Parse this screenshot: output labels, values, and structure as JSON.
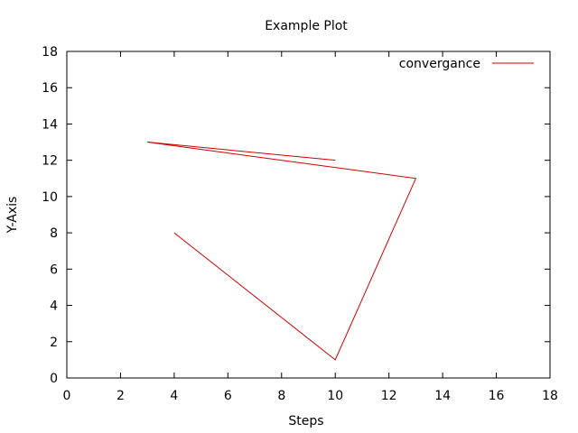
{
  "chart_data": {
    "type": "line",
    "title": "Example Plot",
    "xlabel": "Steps",
    "ylabel": "Y-Axis",
    "xlim": [
      0,
      18
    ],
    "ylim": [
      0,
      18
    ],
    "xticks": [
      0,
      2,
      4,
      6,
      8,
      10,
      12,
      14,
      16,
      18
    ],
    "yticks": [
      0,
      2,
      4,
      6,
      8,
      10,
      12,
      14,
      16,
      18
    ],
    "xtick_labels": [
      "0",
      "2",
      "4",
      "6",
      "8",
      "10",
      "12",
      "14",
      "16",
      "18"
    ],
    "ytick_labels": [
      "0",
      "2",
      "4",
      "6",
      "8",
      "10",
      "12",
      "14",
      "16",
      "18"
    ],
    "grid": false,
    "legend_position": "top-right",
    "series": [
      {
        "name": "convergance",
        "color": "#cc0000",
        "x": [
          4,
          10,
          13,
          3,
          10
        ],
        "y": [
          8,
          1,
          11,
          13,
          12
        ]
      }
    ]
  }
}
